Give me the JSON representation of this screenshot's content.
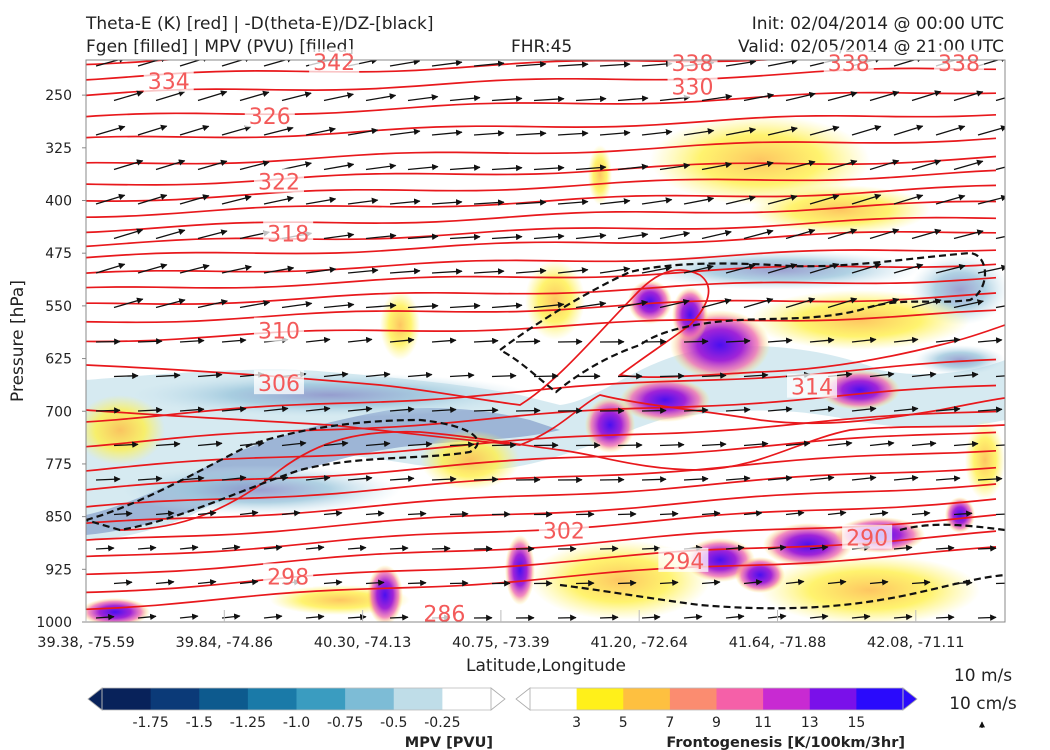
{
  "header": {
    "title_line1": "Theta-E (K) [red] | -D(theta-E)/DZ-[black]",
    "title_line2": "Fgen [filled] | MPV (PVU) [filled]",
    "fhr": "FHR:45",
    "init": "Init: 02/04/2014 @ 00:00 UTC",
    "valid": "Valid: 02/05/2014 @ 21:00 UTC"
  },
  "chart_data": {
    "type": "cross-section",
    "xlabel": "Latitude,Longitude",
    "ylabel": "Pressure [hPa]",
    "ylim": [
      1000,
      200
    ],
    "x_ticks": [
      "39.38, -75.59",
      "39.84, -74.86",
      "40.30, -74.13",
      "40.75, -73.39",
      "41.20, -72.64",
      "41.64, -71.88",
      "42.08, -71.11"
    ],
    "y_ticks": [
      250,
      325,
      400,
      475,
      550,
      625,
      700,
      775,
      850,
      925,
      1000
    ],
    "theta_e_labels": [
      {
        "text": "342",
        "x": 0.27,
        "p": 203
      },
      {
        "text": "338",
        "x": 0.66,
        "p": 204
      },
      {
        "text": "338",
        "x": 0.83,
        "p": 204
      },
      {
        "text": "338",
        "x": 0.95,
        "p": 204
      },
      {
        "text": "334",
        "x": 0.09,
        "p": 230
      },
      {
        "text": "330",
        "x": 0.66,
        "p": 238
      },
      {
        "text": "326",
        "x": 0.2,
        "p": 280
      },
      {
        "text": "322",
        "x": 0.21,
        "p": 373
      },
      {
        "text": "318",
        "x": 0.22,
        "p": 447
      },
      {
        "text": "310",
        "x": 0.21,
        "p": 585
      },
      {
        "text": "306",
        "x": 0.21,
        "p": 660
      },
      {
        "text": "314",
        "x": 0.79,
        "p": 665
      },
      {
        "text": "302",
        "x": 0.52,
        "p": 870
      },
      {
        "text": "294",
        "x": 0.65,
        "p": 913
      },
      {
        "text": "290",
        "x": 0.85,
        "p": 880
      },
      {
        "text": "298",
        "x": 0.22,
        "p": 935
      },
      {
        "text": "286",
        "x": 0.39,
        "p": 988
      }
    ],
    "wind_reference": {
      "horizontal": "10 m/s",
      "vertical": "10 cm/s"
    },
    "colorbars": [
      {
        "label": "MPV [PVU]",
        "ticks": [
          "-1.75",
          "-1.5",
          "-1.25",
          "-1.0",
          "-0.75",
          "-0.5",
          "-0.25"
        ],
        "colors": [
          "#08225a",
          "#0b3a78",
          "#0d5a8e",
          "#1a7aa8",
          "#3a9cc0",
          "#7dbcd6",
          "#bfdde8",
          "#ffffff"
        ]
      },
      {
        "label": "Frontogenesis [K/100km/3hr]",
        "ticks": [
          "3",
          "5",
          "7",
          "9",
          "11",
          "13",
          "15"
        ],
        "colors": [
          "#ffffff",
          "#fff01a",
          "#fec040",
          "#fb8c70",
          "#f560a8",
          "#c82ad2",
          "#7a10ea",
          "#2a0afc"
        ]
      }
    ]
  }
}
